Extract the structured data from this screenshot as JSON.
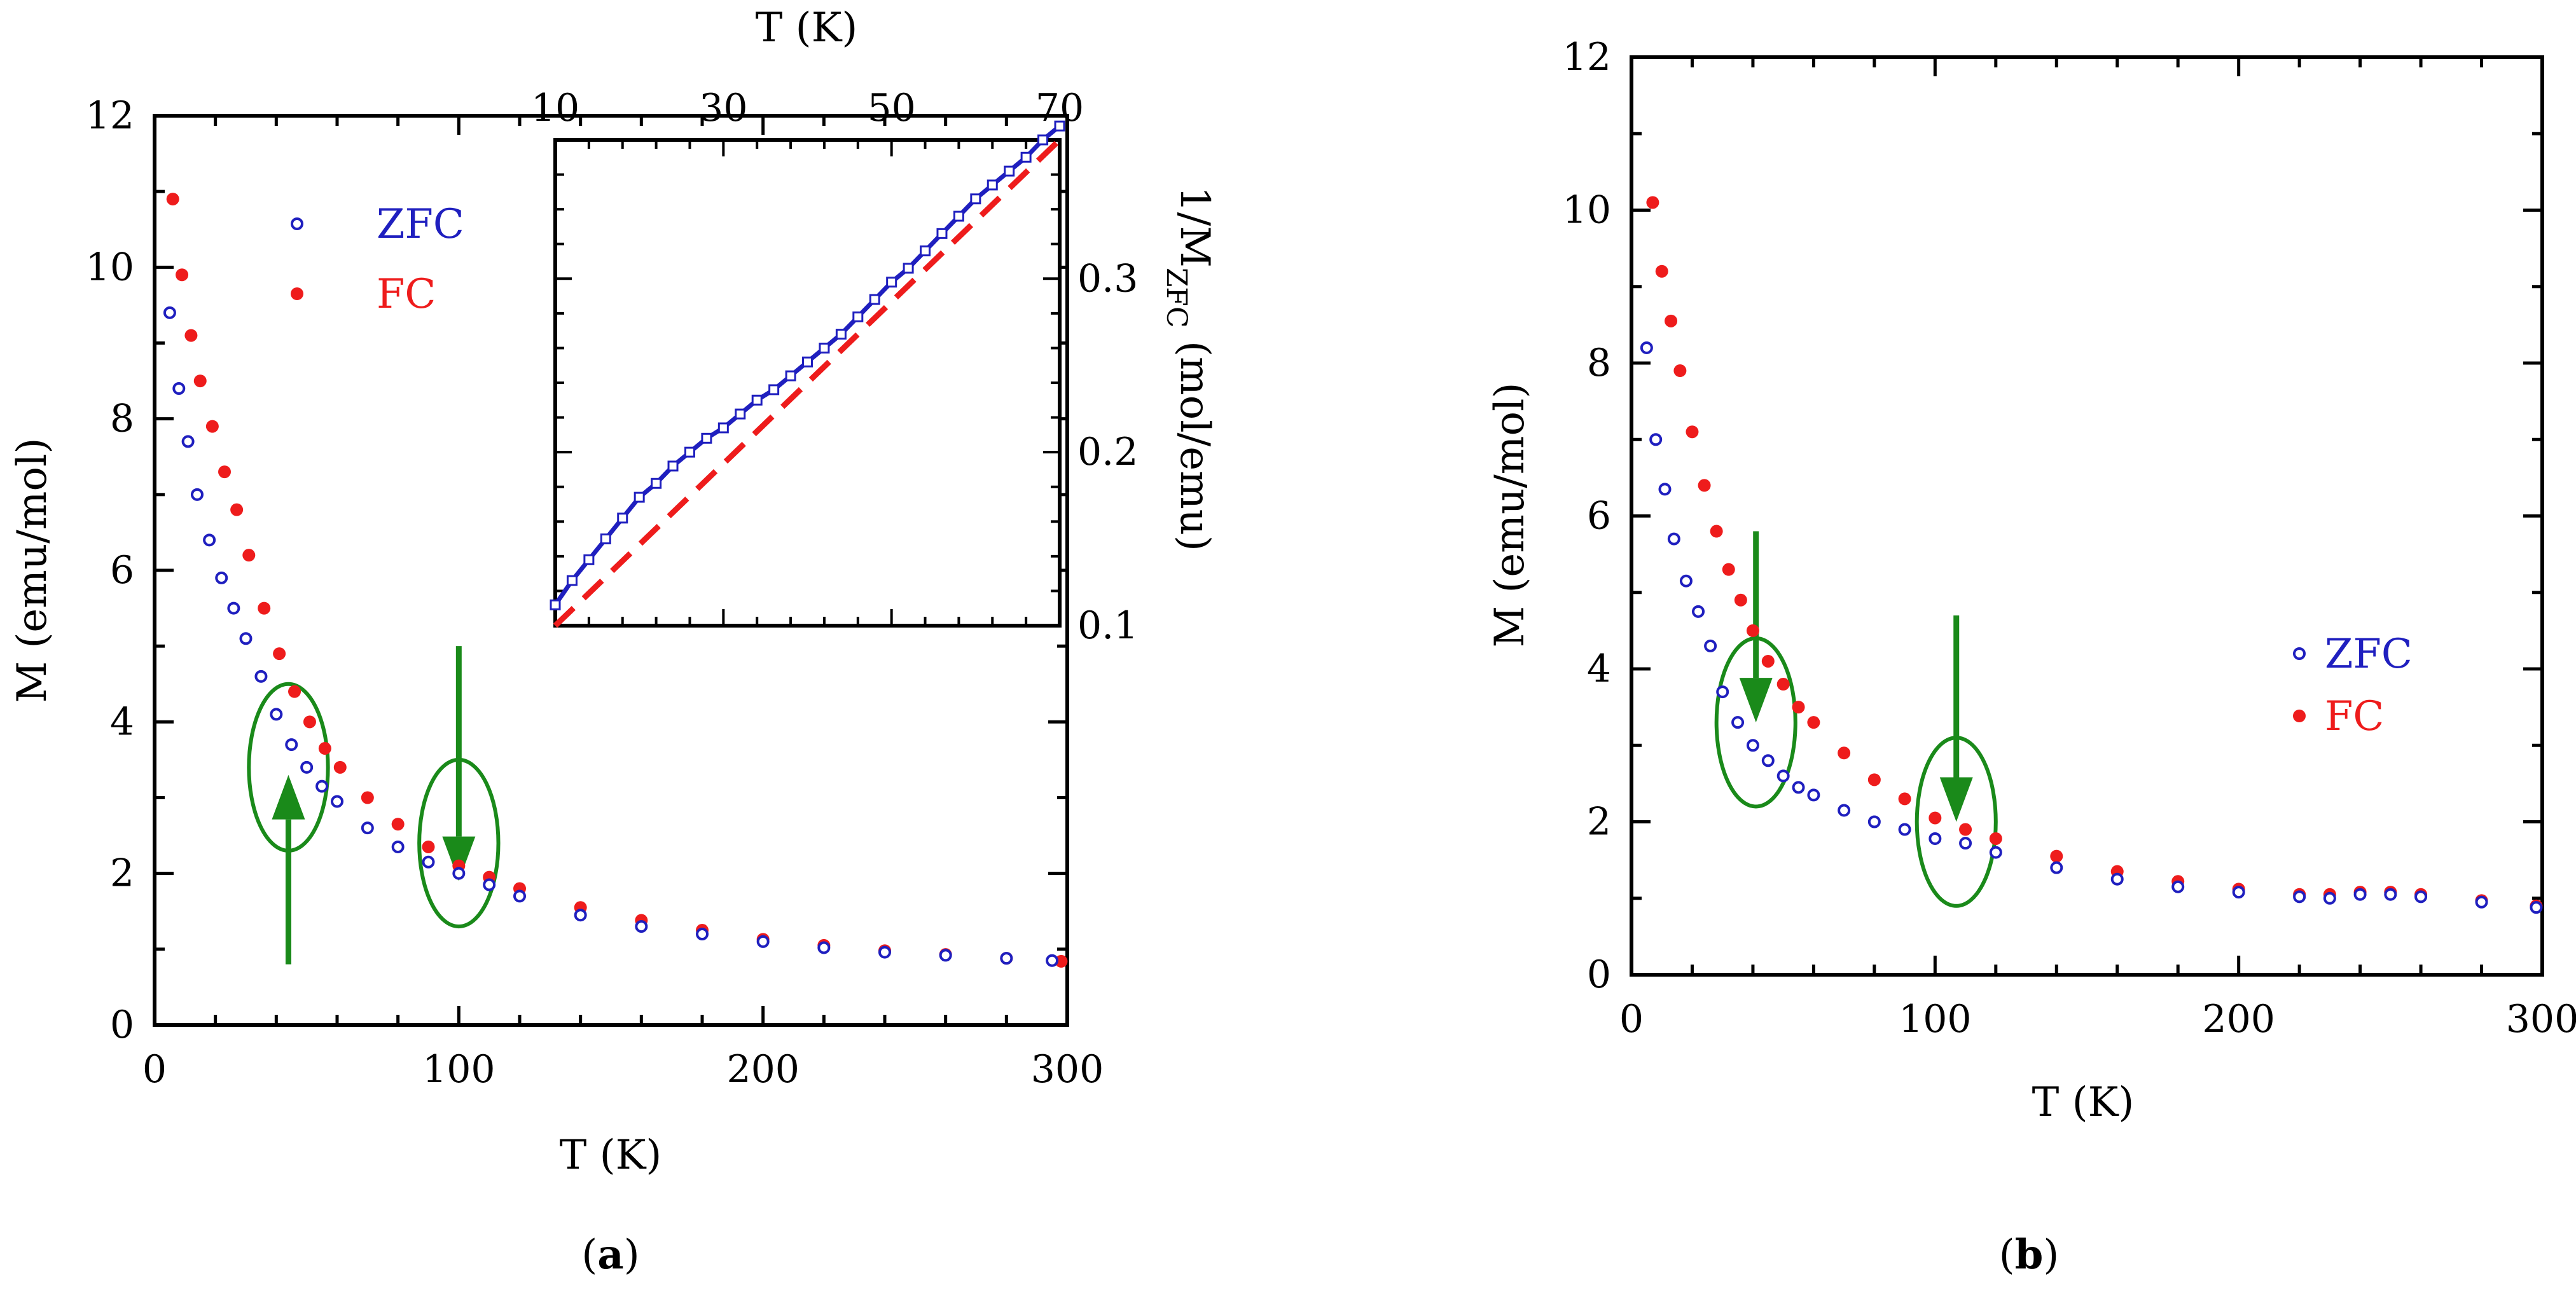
{
  "colors": {
    "zfc": "#1f1fbf",
    "fc": "#ee1c1c",
    "annotation": "#1a8a1a",
    "axis": "#000000"
  },
  "chart_data": [
    {
      "panel": "a",
      "type": "scatter",
      "panel_label": "a",
      "xlabel": "T (K)",
      "ylabel": "M (emu/mol)",
      "xlim": [
        0,
        300
      ],
      "ylim": [
        0,
        12
      ],
      "x_ticks": [
        "0",
        "100",
        "200",
        "300"
      ],
      "y_ticks": [
        "0",
        "2",
        "4",
        "6",
        "8",
        "10",
        "12"
      ],
      "legend": {
        "position": "top-left",
        "entries": [
          "ZFC",
          "FC"
        ]
      },
      "series": [
        {
          "name": "ZFC",
          "marker": "open-circle",
          "x": [
            5,
            8,
            11,
            14,
            18,
            22,
            26,
            30,
            35,
            40,
            45,
            50,
            55,
            60,
            70,
            80,
            90,
            100,
            110,
            120,
            140,
            160,
            180,
            200,
            220,
            240,
            260,
            280,
            295
          ],
          "y": [
            9.4,
            8.4,
            7.7,
            7.0,
            6.4,
            5.9,
            5.5,
            5.1,
            4.6,
            4.1,
            3.7,
            3.4,
            3.15,
            2.95,
            2.6,
            2.35,
            2.15,
            2.0,
            1.85,
            1.7,
            1.45,
            1.3,
            1.2,
            1.1,
            1.02,
            0.96,
            0.92,
            0.88,
            0.85
          ]
        },
        {
          "name": "FC",
          "marker": "filled-circle",
          "x": [
            6,
            9,
            12,
            15,
            19,
            23,
            27,
            31,
            36,
            41,
            46,
            51,
            56,
            61,
            70,
            80,
            90,
            100,
            110,
            120,
            140,
            160,
            180,
            200,
            220,
            240,
            260,
            280,
            298
          ],
          "y": [
            10.9,
            9.9,
            9.1,
            8.5,
            7.9,
            7.3,
            6.8,
            6.2,
            5.5,
            4.9,
            4.4,
            4.0,
            3.65,
            3.4,
            3.0,
            2.65,
            2.35,
            2.1,
            1.95,
            1.8,
            1.55,
            1.38,
            1.25,
            1.13,
            1.05,
            0.98,
            0.93,
            0.88,
            0.84
          ]
        }
      ],
      "annotations": [
        {
          "type": "ellipse",
          "cx": 44,
          "cy": 3.4,
          "rx": 13,
          "ry": 1.1
        },
        {
          "type": "arrow",
          "direction": "up",
          "x": 44,
          "y_from": 0.8,
          "y_to": 3.3
        },
        {
          "type": "ellipse",
          "cx": 100,
          "cy": 2.4,
          "rx": 13,
          "ry": 1.1
        },
        {
          "type": "arrow",
          "direction": "down",
          "x": 100,
          "y_from": 5.0,
          "y_to": 1.9
        }
      ],
      "inset": {
        "type": "line",
        "xlabel": "T (K)",
        "ylabel": "1/M",
        "ylabel_sub": "ZFC",
        "ylabel_unit": "(mol/emu)",
        "xlim": [
          10,
          70
        ],
        "ylim": [
          0.1,
          0.38
        ],
        "x_ticks": [
          "10",
          "30",
          "50",
          "70"
        ],
        "y_ticks": [
          "0.1",
          "0.2",
          "0.3"
        ],
        "series": [
          {
            "name": "data",
            "style": "solid-with-markers",
            "x": [
              10,
              12,
              14,
              16,
              18,
              20,
              22,
              24,
              26,
              28,
              30,
              32,
              34,
              36,
              38,
              40,
              42,
              44,
              46,
              48,
              50,
              52,
              54,
              56,
              58,
              60,
              62,
              64,
              66,
              68,
              70
            ],
            "y": [
              0.112,
              0.126,
              0.138,
              0.15,
              0.162,
              0.174,
              0.182,
              0.192,
              0.2,
              0.208,
              0.214,
              0.222,
              0.23,
              0.236,
              0.244,
              0.252,
              0.26,
              0.268,
              0.278,
              0.288,
              0.298,
              0.306,
              0.316,
              0.326,
              0.336,
              0.346,
              0.354,
              0.362,
              0.37,
              0.38,
              0.388
            ]
          },
          {
            "name": "fit",
            "style": "dashed",
            "x": [
              10,
              70
            ],
            "y": [
              0.1,
              0.38
            ]
          }
        ]
      }
    },
    {
      "panel": "b",
      "type": "scatter",
      "panel_label": "b",
      "xlabel": "T (K)",
      "ylabel": "M (emu/mol)",
      "xlim": [
        0,
        300
      ],
      "ylim": [
        0,
        12
      ],
      "x_ticks": [
        "0",
        "100",
        "200",
        "300"
      ],
      "y_ticks": [
        "0",
        "2",
        "4",
        "6",
        "8",
        "10",
        "12"
      ],
      "legend": {
        "position": "center-right",
        "entries": [
          "ZFC",
          "FC"
        ]
      },
      "series": [
        {
          "name": "ZFC",
          "marker": "open-circle",
          "x": [
            5,
            8,
            11,
            14,
            18,
            22,
            26,
            30,
            35,
            40,
            45,
            50,
            55,
            60,
            70,
            80,
            90,
            100,
            110,
            120,
            140,
            160,
            180,
            200,
            220,
            230,
            240,
            250,
            260,
            280,
            298
          ],
          "y": [
            8.2,
            7.0,
            6.35,
            5.7,
            5.15,
            4.75,
            4.3,
            3.7,
            3.3,
            3.0,
            2.8,
            2.6,
            2.45,
            2.35,
            2.15,
            2.0,
            1.9,
            1.78,
            1.72,
            1.6,
            1.4,
            1.25,
            1.15,
            1.08,
            1.02,
            1.0,
            1.05,
            1.05,
            1.02,
            0.95,
            0.88
          ]
        },
        {
          "name": "FC",
          "marker": "filled-circle",
          "x": [
            7,
            10,
            13,
            16,
            20,
            24,
            28,
            32,
            36,
            40,
            45,
            50,
            55,
            60,
            70,
            80,
            90,
            100,
            110,
            120,
            140,
            160,
            180,
            200,
            220,
            230,
            240,
            250,
            260,
            280,
            298
          ],
          "y": [
            10.1,
            9.2,
            8.55,
            7.9,
            7.1,
            6.4,
            5.8,
            5.3,
            4.9,
            4.5,
            4.1,
            3.8,
            3.5,
            3.3,
            2.9,
            2.55,
            2.3,
            2.05,
            1.9,
            1.78,
            1.55,
            1.35,
            1.22,
            1.12,
            1.05,
            1.05,
            1.08,
            1.08,
            1.05,
            0.97,
            0.9
          ]
        }
      ],
      "annotations": [
        {
          "type": "ellipse",
          "cx": 41,
          "cy": 3.3,
          "rx": 13,
          "ry": 1.1
        },
        {
          "type": "arrow",
          "direction": "down",
          "x": 41,
          "y_from": 5.8,
          "y_to": 3.3
        },
        {
          "type": "ellipse",
          "cx": 107,
          "cy": 2.0,
          "rx": 13,
          "ry": 1.1
        },
        {
          "type": "arrow",
          "direction": "down",
          "x": 107,
          "y_from": 4.7,
          "y_to": 2.0
        }
      ]
    }
  ]
}
